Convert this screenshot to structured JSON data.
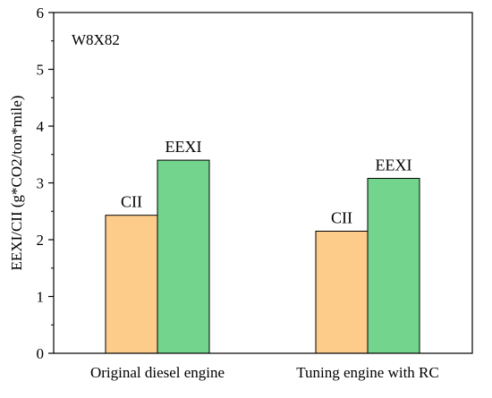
{
  "chart_data": {
    "type": "bar",
    "categories": [
      "Original diesel engine",
      "Tuning engine with RC"
    ],
    "series": [
      {
        "name": "CII",
        "values": [
          2.43,
          2.15
        ],
        "color": "#fdcb8a"
      },
      {
        "name": "EEXI",
        "values": [
          3.4,
          3.08
        ],
        "color": "#73d48d"
      }
    ],
    "ylabel": "EEXI/CII (g*CO2/ton*mile)",
    "xlabel": "",
    "ylim": [
      0,
      6
    ],
    "yticks": [
      0,
      1,
      2,
      3,
      4,
      5,
      6
    ],
    "annotation": "W8X82",
    "grid": false,
    "legend": "none"
  }
}
